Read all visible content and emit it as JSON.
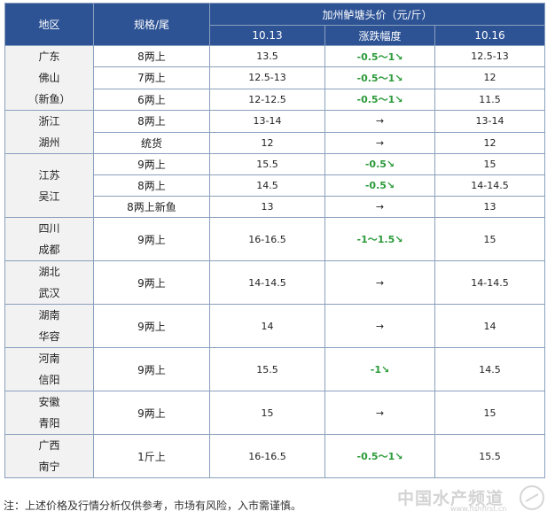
{
  "header": {
    "region": "地区",
    "spec": "规格/尾",
    "group_title": "加州鲈塘头价（元/斤）",
    "date1": "10.13",
    "change": "涨跌幅度",
    "date2": "10.16"
  },
  "groups": [
    {
      "region_lines": [
        "广东",
        "佛山",
        "（新鱼）"
      ],
      "rows": [
        {
          "spec": "8两上",
          "p1": "13.5",
          "chg": "-0.5～1↘",
          "p2": "12.5-13"
        },
        {
          "spec": "7两上",
          "p1": "12.5-13",
          "chg": "-0.5～1↘",
          "p2": "12"
        },
        {
          "spec": "6两上",
          "p1": "12-12.5",
          "chg": "-0.5～1↘",
          "p2": "11.5"
        }
      ]
    },
    {
      "region_lines": [
        "浙江",
        "湖州"
      ],
      "rows": [
        {
          "spec": "8两上",
          "p1": "13-14",
          "chg": "→",
          "p2": "13-14"
        },
        {
          "spec": "统货",
          "p1": "12",
          "chg": "→",
          "p2": "12"
        }
      ]
    },
    {
      "region_lines": [
        "江苏",
        "吴江"
      ],
      "rows": [
        {
          "spec": "9两上",
          "p1": "15.5",
          "chg": "-0.5↘",
          "p2": "15"
        },
        {
          "spec": "8两上",
          "p1": "14.5",
          "chg": "-0.5↘",
          "p2": "14-14.5"
        },
        {
          "spec": "8两上新鱼",
          "p1": "13",
          "chg": "→",
          "p2": "13"
        }
      ]
    },
    {
      "region_lines": [
        "四川",
        "成都"
      ],
      "rows": [
        {
          "spec": "9两上",
          "p1": "16-16.5",
          "chg": "-1～1.5↘",
          "p2": "15"
        }
      ]
    },
    {
      "region_lines": [
        "湖北",
        "武汉"
      ],
      "rows": [
        {
          "spec": "9两上",
          "p1": "14-14.5",
          "chg": "→",
          "p2": "14-14.5"
        }
      ]
    },
    {
      "region_lines": [
        "湖南",
        "华容"
      ],
      "rows": [
        {
          "spec": "9两上",
          "p1": "14",
          "chg": "→",
          "p2": "14"
        }
      ]
    },
    {
      "region_lines": [
        "河南",
        "信阳"
      ],
      "rows": [
        {
          "spec": "9两上",
          "p1": "15.5",
          "chg": "-1↘",
          "p2": "14.5"
        }
      ]
    },
    {
      "region_lines": [
        "安徽",
        "青阳"
      ],
      "rows": [
        {
          "spec": "9两上",
          "p1": "15",
          "chg": "→",
          "p2": "15"
        }
      ]
    },
    {
      "region_lines": [
        "广西",
        "南宁"
      ],
      "rows": [
        {
          "spec": "1斤上",
          "p1": "16-16.5",
          "chg": "-0.5～1↘",
          "p2": "15.5"
        }
      ]
    }
  ],
  "note": "注：上述价格及行情分析仅供参考，市场有风险，入市需谨慎。",
  "watermark": {
    "text": "中国水产频道",
    "url": "www.fishfirst.cn"
  },
  "colors": {
    "header_bg": "#2d5395",
    "header_text": "#ffffff",
    "region_bg": "#f2f2f2",
    "border": "#8aa0bd",
    "change_down": "#2b9a3a"
  }
}
